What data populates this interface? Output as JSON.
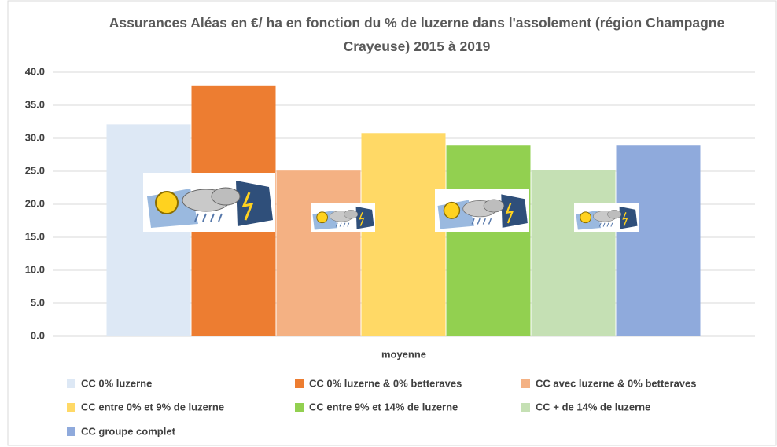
{
  "chart_data": {
    "type": "bar",
    "title": "Assurances Aléas en €/ ha en fonction du % de luzerne dans l'assolement (région Champagne Crayeuse) 2015 à 2019",
    "categories": [
      "moyenne"
    ],
    "series": [
      {
        "name": "CC 0% luzerne",
        "color": "#dde8f5",
        "values": [
          32.1
        ]
      },
      {
        "name": "CC 0% luzerne & 0% betteraves",
        "color": "#ed7d31",
        "values": [
          38.0
        ]
      },
      {
        "name": "CC avec luzerne & 0% betteraves",
        "color": "#f4b183",
        "values": [
          25.1
        ]
      },
      {
        "name": "CC entre 0% et 9% de luzerne",
        "color": "#ffd966",
        "values": [
          30.8
        ]
      },
      {
        "name": "CC entre 9% et 14% de luzerne",
        "color": "#92d050",
        "values": [
          28.9
        ]
      },
      {
        "name": "CC + de 14% de luzerne",
        "color": "#c5e0b4",
        "values": [
          25.2
        ]
      },
      {
        "name": "CC groupe complet",
        "color": "#8faadc",
        "values": [
          28.9
        ]
      }
    ],
    "ylim": [
      0,
      40
    ],
    "yticks": [
      {
        "value": 0,
        "label": "0.0"
      },
      {
        "value": 5,
        "label": "5.0"
      },
      {
        "value": 10,
        "label": "10.0"
      },
      {
        "value": 15,
        "label": "15.0"
      },
      {
        "value": 20,
        "label": "20.0"
      },
      {
        "value": 25,
        "label": "25.0"
      },
      {
        "value": 30,
        "label": "30.0"
      },
      {
        "value": 35,
        "label": "35.0"
      },
      {
        "value": 40,
        "label": "40.0"
      }
    ],
    "grid": true
  }
}
